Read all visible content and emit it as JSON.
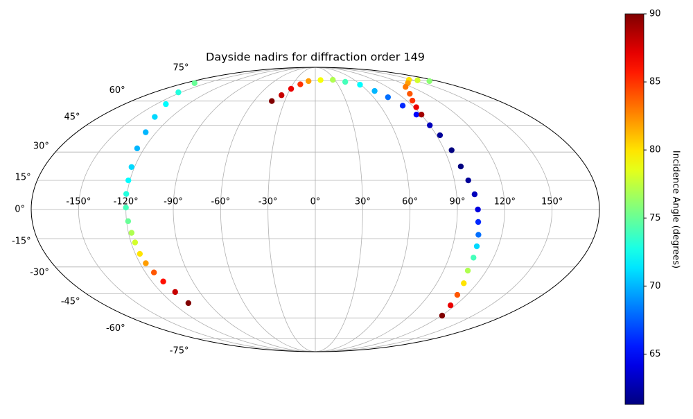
{
  "chart_data": {
    "type": "scatter",
    "projection": "mollweide",
    "title": "Dayside nadirs for diffraction order 149",
    "xlim": [
      -180,
      180
    ],
    "ylim": [
      -90,
      90
    ],
    "grid": true,
    "xticks": [
      {
        "value": -150,
        "label": "-150°"
      },
      {
        "value": -120,
        "label": "-120°"
      },
      {
        "value": -90,
        "label": "-90°"
      },
      {
        "value": -60,
        "label": "-60°"
      },
      {
        "value": -30,
        "label": "-30°"
      },
      {
        "value": 0,
        "label": "0°"
      },
      {
        "value": 30,
        "label": "30°"
      },
      {
        "value": 60,
        "label": "60°"
      },
      {
        "value": 90,
        "label": "90°"
      },
      {
        "value": 120,
        "label": "120°"
      },
      {
        "value": 150,
        "label": "150°"
      }
    ],
    "yticks": [
      {
        "value": -75,
        "label": "-75°"
      },
      {
        "value": -60,
        "label": "-60°"
      },
      {
        "value": -45,
        "label": "-45°"
      },
      {
        "value": -30,
        "label": "-30°"
      },
      {
        "value": -15,
        "label": "-15°"
      },
      {
        "value": 0,
        "label": "0°"
      },
      {
        "value": 15,
        "label": "15°"
      },
      {
        "value": 30,
        "label": "30°"
      },
      {
        "value": 45,
        "label": "45°"
      },
      {
        "value": 60,
        "label": "60°"
      },
      {
        "value": 75,
        "label": "75°"
      }
    ],
    "colormap": "jet",
    "clim": [
      61.3,
      90
    ],
    "cticks": [
      65,
      70,
      75,
      80,
      85,
      90
    ],
    "colorbar_label": "Incidence Angle (degrees)",
    "series": [
      {
        "x": [
          -167,
          -153,
          -141,
          -134,
          -128,
          -125,
          -122,
          -121,
          -120.5,
          -120,
          -119,
          -118,
          -117.4,
          -117,
          -116,
          -114,
          -111.7,
          -109,
          -106.8
        ],
        "y": [
          73,
          66,
          58,
          50,
          41,
          32,
          22,
          15,
          8,
          1,
          -6,
          -12,
          -17,
          -23,
          -28,
          -33,
          -38,
          -44,
          -50.6
        ],
        "c": [
          75,
          73,
          72,
          71,
          70,
          70,
          71,
          72,
          73,
          74,
          75,
          77,
          78,
          80,
          82,
          84,
          86,
          88,
          90
        ]
      },
      {
        "x": [
          -42.6,
          -36,
          -29,
          -20,
          -10,
          8,
          27,
          43,
          59,
          68,
          75,
          81,
          86,
          90,
          92.6,
          95,
          96.7,
          99,
          101.5,
          103,
          103.6,
          105,
          105.9,
          106.5,
          107,
          110,
          112.5,
          116,
          120.7
        ],
        "y": [
          60,
          64,
          68.6,
          72,
          74.6,
          75.5,
          75.7,
          74,
          71.7,
          67,
          62.6,
          57,
          51.4,
          45,
          39.3,
          31,
          22.3,
          15,
          7.8,
          0,
          -6.4,
          -13,
          -19,
          -25,
          -32,
          -39,
          -45.7,
          -52,
          -58.5
        ],
        "c": [
          90,
          88,
          87,
          85,
          82,
          79,
          77,
          74,
          72,
          70,
          68,
          66,
          65,
          63,
          62,
          61,
          61,
          62,
          63,
          64,
          66,
          68,
          71,
          74,
          77,
          80,
          84,
          87,
          90
        ]
      },
      {
        "x": [
          168,
          155,
          144.6,
          128,
          112.8,
          103,
          95.6,
          92,
          90.3
        ],
        "y": [
          74.6,
          75.3,
          75.7,
          73,
          70,
          65,
          60.3,
          56,
          51.4
        ],
        "c": [
          76,
          78,
          80,
          82,
          83,
          84,
          85,
          87,
          89
        ]
      }
    ]
  }
}
